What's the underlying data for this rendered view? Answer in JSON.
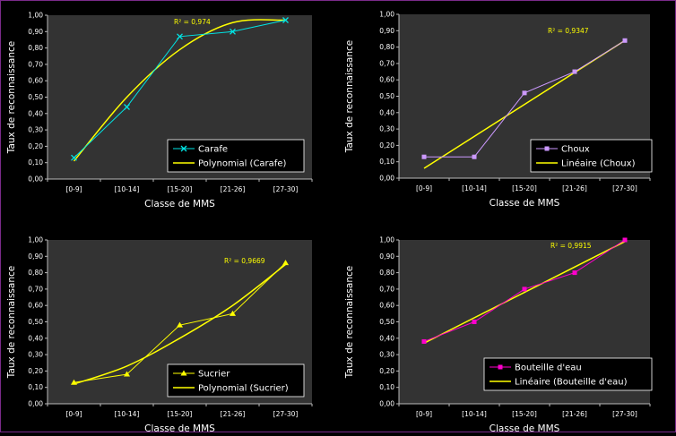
{
  "colors": {
    "background": "#000000",
    "plot_area": "#333333",
    "frame": "#7a2a8a",
    "text": "#ffffff",
    "trendline": "#ffff00"
  },
  "chart_data": [
    {
      "type": "line",
      "categories": [
        "[0-9]",
        "[10-14]",
        "[15-20]",
        "[21-26]",
        "[27-30]"
      ],
      "ylabel": "Taux de reconnaissance",
      "xlabel": "Classe de MMS",
      "ylim": [
        0,
        1
      ],
      "ytick_step": 0.1,
      "yticks": [
        "0,00",
        "0,10",
        "0,20",
        "0,30",
        "0,40",
        "0,50",
        "0,60",
        "0,70",
        "0,80",
        "0,90",
        "1,00"
      ],
      "r2_label": "R² = 0,974",
      "legend_position": "bottom-right",
      "series": [
        {
          "name": "Carafe",
          "values": [
            0.13,
            0.44,
            0.87,
            0.9,
            0.97
          ],
          "color": "#00e5e5",
          "marker": "x-mark"
        },
        {
          "name": "Polynomial (Carafe)",
          "values": [
            0.11,
            0.5,
            0.79,
            0.955,
            0.97
          ],
          "color": "#ffff00",
          "marker": "none",
          "curve": true
        }
      ]
    },
    {
      "type": "line",
      "categories": [
        "[0-9]",
        "[10-14]",
        "[15-20]",
        "[21-26]",
        "[27-30]"
      ],
      "ylabel": "Taux de reconnaissance",
      "xlabel": "Classe de MMS",
      "ylim": [
        0,
        1
      ],
      "ytick_step": 0.1,
      "yticks": [
        "0,00",
        "0,10",
        "0,20",
        "0,30",
        "0,40",
        "0,50",
        "0,60",
        "0,70",
        "0,80",
        "0,90",
        "1,00"
      ],
      "r2_label": "R² = 0,9347",
      "legend_position": "bottom-right",
      "series": [
        {
          "name": "Choux",
          "values": [
            0.13,
            0.13,
            0.52,
            0.65,
            0.84
          ],
          "color": "#cc99ff",
          "marker": "square"
        },
        {
          "name": "Linéaire (Choux)",
          "values": [
            0.06,
            0.25,
            0.445,
            0.645,
            0.84
          ],
          "color": "#ffff00",
          "marker": "none"
        }
      ]
    },
    {
      "type": "line",
      "categories": [
        "[0-9]",
        "[10-14]",
        "[15-20]",
        "[21-26]",
        "[27-30]"
      ],
      "ylabel": "Taux de reconnaissance",
      "xlabel": "Classe de MMS",
      "ylim": [
        0,
        1
      ],
      "ytick_step": 0.1,
      "yticks": [
        "0,00",
        "0,10",
        "0,20",
        "0,30",
        "0,40",
        "0,50",
        "0,60",
        "0,70",
        "0,80",
        "0,90",
        "1,00"
      ],
      "r2_label": "R² = 0,9669",
      "legend_position": "bottom-right",
      "series": [
        {
          "name": "Sucrier",
          "values": [
            0.13,
            0.18,
            0.48,
            0.55,
            0.86
          ],
          "color": "#ffff00",
          "marker": "triangle"
        },
        {
          "name": "Polynomial (Sucrier)",
          "values": [
            0.12,
            0.23,
            0.4,
            0.6,
            0.85
          ],
          "color": "#ffff00",
          "marker": "none",
          "curve": true
        }
      ]
    },
    {
      "type": "line",
      "categories": [
        "[0-9]",
        "[10-14]",
        "[15-20]",
        "[21-26]",
        "[27-30]"
      ],
      "ylabel": "Taux de reconnaissance",
      "xlabel": "Classe de MMS",
      "ylim": [
        0,
        1
      ],
      "ytick_step": 0.1,
      "yticks": [
        "0,00",
        "0,10",
        "0,20",
        "0,30",
        "0,40",
        "0,50",
        "0,60",
        "0,70",
        "0,80",
        "0,90",
        "1,00"
      ],
      "r2_label": "R² = 0,9915",
      "legend_position": "bottom-right",
      "series": [
        {
          "name": "Bouteille d'eau",
          "values": [
            0.38,
            0.5,
            0.7,
            0.8,
            1.0
          ],
          "color": "#ff00cc",
          "marker": "square"
        },
        {
          "name": "Linéaire (Bouteille d'eau)",
          "values": [
            0.37,
            0.525,
            0.68,
            0.835,
            0.99
          ],
          "color": "#ffff00",
          "marker": "none"
        }
      ]
    }
  ]
}
